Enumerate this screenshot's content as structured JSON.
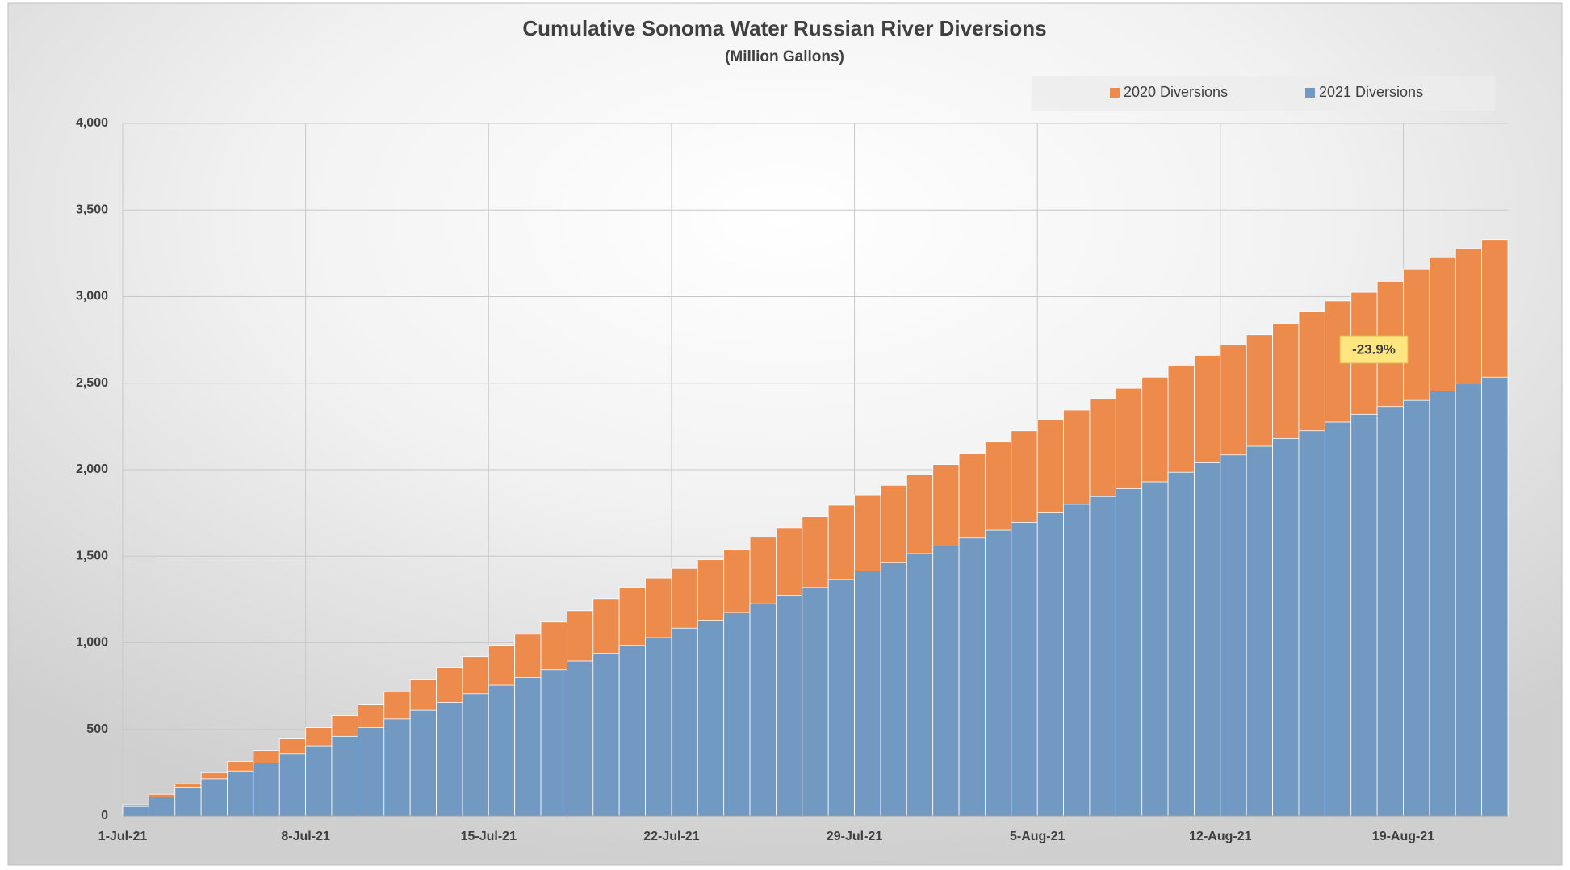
{
  "chart_data": {
    "type": "bar",
    "title": "Cumulative Sonoma Water Russian River Diversions",
    "subtitle": "(Million Gallons)",
    "annotation": "-23.9%",
    "categories": [
      "1-Jul-21",
      null,
      null,
      null,
      null,
      null,
      null,
      "8-Jul-21",
      null,
      null,
      null,
      null,
      null,
      null,
      "15-Jul-21",
      null,
      null,
      null,
      null,
      null,
      null,
      "22-Jul-21",
      null,
      null,
      null,
      null,
      null,
      null,
      "29-Jul-21",
      null,
      null,
      null,
      null,
      null,
      null,
      "5-Aug-21",
      null,
      null,
      null,
      null,
      null,
      null,
      "12-Aug-21",
      null,
      null,
      null,
      null,
      null,
      null,
      "19-Aug-21",
      null,
      null,
      null
    ],
    "series": [
      {
        "name": "2020 Diversions",
        "color": "#ed8b4c",
        "values": [
          65,
          125,
          185,
          250,
          315,
          380,
          445,
          510,
          580,
          645,
          715,
          790,
          855,
          920,
          985,
          1050,
          1120,
          1185,
          1255,
          1320,
          1375,
          1430,
          1480,
          1540,
          1610,
          1665,
          1730,
          1795,
          1855,
          1910,
          1970,
          2030,
          2095,
          2160,
          2225,
          2290,
          2345,
          2410,
          2470,
          2535,
          2600,
          2660,
          2720,
          2780,
          2845,
          2915,
          2975,
          3025,
          3085,
          3160,
          3225,
          3280,
          3330
        ]
      },
      {
        "name": "2021 Diversions",
        "color": "#7199c1",
        "values": [
          55,
          110,
          165,
          215,
          260,
          305,
          360,
          405,
          460,
          510,
          560,
          610,
          655,
          705,
          755,
          800,
          845,
          895,
          940,
          985,
          1030,
          1085,
          1130,
          1175,
          1225,
          1275,
          1320,
          1365,
          1415,
          1465,
          1515,
          1560,
          1605,
          1650,
          1695,
          1750,
          1800,
          1845,
          1890,
          1930,
          1985,
          2040,
          2085,
          2135,
          2180,
          2225,
          2275,
          2320,
          2365,
          2400,
          2455,
          2500,
          2535
        ]
      }
    ],
    "ylim": [
      0,
      4000
    ],
    "yticks": [
      0,
      500,
      {
        "value": 1000,
        "label": "1,000"
      },
      {
        "value": 1500,
        "label": "1,500"
      },
      {
        "value": 2000,
        "label": "2,000"
      },
      {
        "value": 2500,
        "label": "2,500"
      },
      {
        "value": 3000,
        "label": "3,000"
      },
      {
        "value": 3500,
        "label": "3,500"
      },
      {
        "value": 4000,
        "label": "4,000"
      }
    ],
    "grid": true,
    "legend": "top-right",
    "overlap": true
  }
}
